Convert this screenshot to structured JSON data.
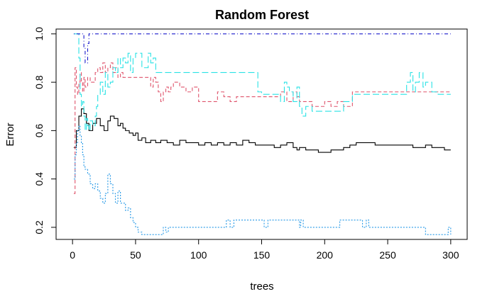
{
  "chart_data": {
    "type": "line",
    "title": "Random Forest",
    "xlabel": "trees",
    "ylabel": "Error",
    "xlim": [
      0,
      300
    ],
    "ylim": [
      0.15,
      1.02
    ],
    "xticks": [
      0,
      50,
      100,
      150,
      200,
      250,
      300
    ],
    "xtick_labels": [
      "0",
      "50",
      "100",
      "150",
      "200",
      "250",
      "300"
    ],
    "yticks": [
      0.2,
      0.4,
      0.6,
      0.8,
      1.0
    ],
    "ytick_labels": [
      "0.2",
      "0.4",
      "0.6",
      "0.8",
      "1.0"
    ],
    "grid": false,
    "legend": "none",
    "series": [
      {
        "color": "#000000",
        "dash": "solid",
        "x": [
          1,
          3,
          5,
          7,
          9,
          11,
          13,
          16,
          19,
          22,
          25,
          28,
          30,
          33,
          36,
          38,
          40,
          42,
          45,
          48,
          50,
          52,
          55,
          58,
          62,
          66,
          70,
          75,
          80,
          85,
          90,
          95,
          100,
          105,
          110,
          115,
          120,
          125,
          130,
          135,
          140,
          145,
          150,
          155,
          160,
          165,
          170,
          175,
          178,
          180,
          185,
          190,
          195,
          200,
          205,
          210,
          215,
          220,
          225,
          230,
          235,
          240,
          245,
          250,
          255,
          260,
          265,
          270,
          275,
          280,
          285,
          290,
          295,
          300
        ],
        "y": [
          0.53,
          0.6,
          0.66,
          0.69,
          0.67,
          0.63,
          0.6,
          0.63,
          0.65,
          0.62,
          0.6,
          0.64,
          0.66,
          0.65,
          0.62,
          0.63,
          0.61,
          0.6,
          0.59,
          0.58,
          0.59,
          0.56,
          0.57,
          0.55,
          0.56,
          0.55,
          0.56,
          0.55,
          0.54,
          0.56,
          0.55,
          0.55,
          0.54,
          0.55,
          0.54,
          0.55,
          0.54,
          0.55,
          0.54,
          0.56,
          0.55,
          0.54,
          0.54,
          0.54,
          0.53,
          0.54,
          0.55,
          0.53,
          0.52,
          0.53,
          0.52,
          0.52,
          0.51,
          0.51,
          0.52,
          0.52,
          0.53,
          0.54,
          0.55,
          0.55,
          0.55,
          0.54,
          0.54,
          0.54,
          0.54,
          0.54,
          0.54,
          0.53,
          0.53,
          0.54,
          0.53,
          0.53,
          0.52,
          0.52
        ]
      },
      {
        "color": "#DF536B",
        "dash": "dashed",
        "x": [
          1,
          2,
          3,
          4,
          5,
          6,
          7,
          8,
          9,
          10,
          12,
          14,
          16,
          18,
          20,
          22,
          24,
          26,
          28,
          30,
          32,
          34,
          36,
          38,
          40,
          45,
          50,
          55,
          60,
          62,
          64,
          66,
          68,
          70,
          72,
          74,
          76,
          78,
          80,
          85,
          90,
          95,
          100,
          105,
          110,
          115,
          120,
          125,
          130,
          140,
          150,
          160,
          165,
          170,
          175,
          178,
          180,
          185,
          190,
          195,
          200,
          205,
          210,
          215,
          220,
          222,
          225,
          230,
          240,
          250,
          260,
          270,
          280,
          290,
          300
        ],
        "y": [
          0.34,
          0.86,
          0.78,
          0.75,
          0.8,
          0.84,
          0.8,
          0.76,
          0.82,
          0.78,
          0.82,
          0.8,
          0.8,
          0.84,
          0.86,
          0.84,
          0.88,
          0.84,
          0.86,
          0.88,
          0.84,
          0.86,
          0.82,
          0.84,
          0.82,
          0.82,
          0.82,
          0.82,
          0.82,
          0.78,
          0.82,
          0.8,
          0.76,
          0.72,
          0.76,
          0.78,
          0.76,
          0.78,
          0.8,
          0.78,
          0.76,
          0.78,
          0.72,
          0.72,
          0.72,
          0.76,
          0.74,
          0.72,
          0.74,
          0.74,
          0.74,
          0.74,
          0.76,
          0.72,
          0.76,
          0.74,
          0.72,
          0.72,
          0.7,
          0.7,
          0.72,
          0.7,
          0.72,
          0.7,
          0.7,
          0.76,
          0.76,
          0.76,
          0.76,
          0.76,
          0.76,
          0.76,
          0.76,
          0.76,
          0.76
        ]
      },
      {
        "color": "#28E2E5",
        "dash": "longdash",
        "x": [
          1,
          3,
          5,
          6,
          7,
          8,
          9,
          10,
          11,
          12,
          13,
          14,
          16,
          18,
          19,
          20,
          22,
          24,
          26,
          28,
          30,
          32,
          34,
          36,
          38,
          40,
          42,
          44,
          46,
          48,
          50,
          55,
          60,
          62,
          64,
          66,
          70,
          75,
          80,
          90,
          100,
          110,
          120,
          130,
          140,
          145,
          147,
          150,
          160,
          165,
          168,
          170,
          172,
          175,
          178,
          180,
          182,
          185,
          190,
          195,
          200,
          205,
          210,
          215,
          220,
          222,
          225,
          230,
          240,
          250,
          260,
          265,
          268,
          270,
          272,
          275,
          278,
          280,
          285,
          290,
          295,
          300
        ],
        "y": [
          1.0,
          1.0,
          0.9,
          0.75,
          0.7,
          0.72,
          0.66,
          0.6,
          0.65,
          0.62,
          0.6,
          0.64,
          0.62,
          0.66,
          0.7,
          0.75,
          0.8,
          0.75,
          0.84,
          0.78,
          0.8,
          0.86,
          0.84,
          0.9,
          0.86,
          0.9,
          0.88,
          0.92,
          0.84,
          0.9,
          0.92,
          0.86,
          0.92,
          0.88,
          0.9,
          0.84,
          0.84,
          0.84,
          0.84,
          0.84,
          0.84,
          0.84,
          0.84,
          0.84,
          0.84,
          0.84,
          0.76,
          0.75,
          0.75,
          0.72,
          0.8,
          0.78,
          0.76,
          0.72,
          0.78,
          0.7,
          0.66,
          0.7,
          0.68,
          0.68,
          0.68,
          0.68,
          0.68,
          0.72,
          0.72,
          0.75,
          0.75,
          0.75,
          0.75,
          0.75,
          0.75,
          0.8,
          0.84,
          0.76,
          0.8,
          0.84,
          0.78,
          0.8,
          0.76,
          0.75,
          0.75,
          0.75
        ]
      },
      {
        "color": "#2297E6",
        "dash": "dotted",
        "x": [
          1,
          2,
          3,
          4,
          5,
          6,
          7,
          8,
          9,
          10,
          12,
          14,
          16,
          18,
          20,
          22,
          24,
          26,
          28,
          30,
          32,
          34,
          36,
          38,
          40,
          42,
          44,
          46,
          48,
          50,
          52,
          55,
          60,
          65,
          70,
          72,
          74,
          76,
          80,
          90,
          100,
          110,
          120,
          122,
          125,
          128,
          130,
          140,
          150,
          152,
          155,
          160,
          170,
          180,
          181,
          183,
          185,
          190,
          200,
          210,
          212,
          215,
          220,
          228,
          230,
          233,
          235,
          240,
          250,
          260,
          270,
          275,
          280,
          290,
          295,
          298,
          300
        ],
        "y": [
          0.4,
          0.5,
          0.55,
          0.6,
          0.62,
          0.58,
          0.55,
          0.5,
          0.45,
          0.44,
          0.42,
          0.38,
          0.36,
          0.38,
          0.35,
          0.32,
          0.3,
          0.34,
          0.42,
          0.38,
          0.34,
          0.3,
          0.35,
          0.3,
          0.3,
          0.27,
          0.28,
          0.24,
          0.22,
          0.2,
          0.18,
          0.17,
          0.17,
          0.17,
          0.17,
          0.2,
          0.18,
          0.2,
          0.2,
          0.2,
          0.2,
          0.2,
          0.2,
          0.23,
          0.2,
          0.23,
          0.23,
          0.23,
          0.23,
          0.2,
          0.23,
          0.23,
          0.23,
          0.2,
          0.23,
          0.2,
          0.2,
          0.2,
          0.2,
          0.2,
          0.23,
          0.23,
          0.23,
          0.23,
          0.2,
          0.23,
          0.2,
          0.2,
          0.2,
          0.2,
          0.2,
          0.2,
          0.17,
          0.17,
          0.17,
          0.2,
          0.17
        ]
      },
      {
        "color": "#1a1acc",
        "dash": "dotdash",
        "x": [
          1,
          3,
          6,
          8,
          9,
          10,
          11,
          12,
          13,
          15,
          20,
          40,
          60,
          80,
          100,
          150,
          200,
          250,
          300
        ],
        "y": [
          1.0,
          1.0,
          1.0,
          1.0,
          0.94,
          0.88,
          0.88,
          0.96,
          1.0,
          1.0,
          1.0,
          1.0,
          1.0,
          1.0,
          1.0,
          1.0,
          1.0,
          1.0,
          1.0
        ]
      }
    ]
  }
}
